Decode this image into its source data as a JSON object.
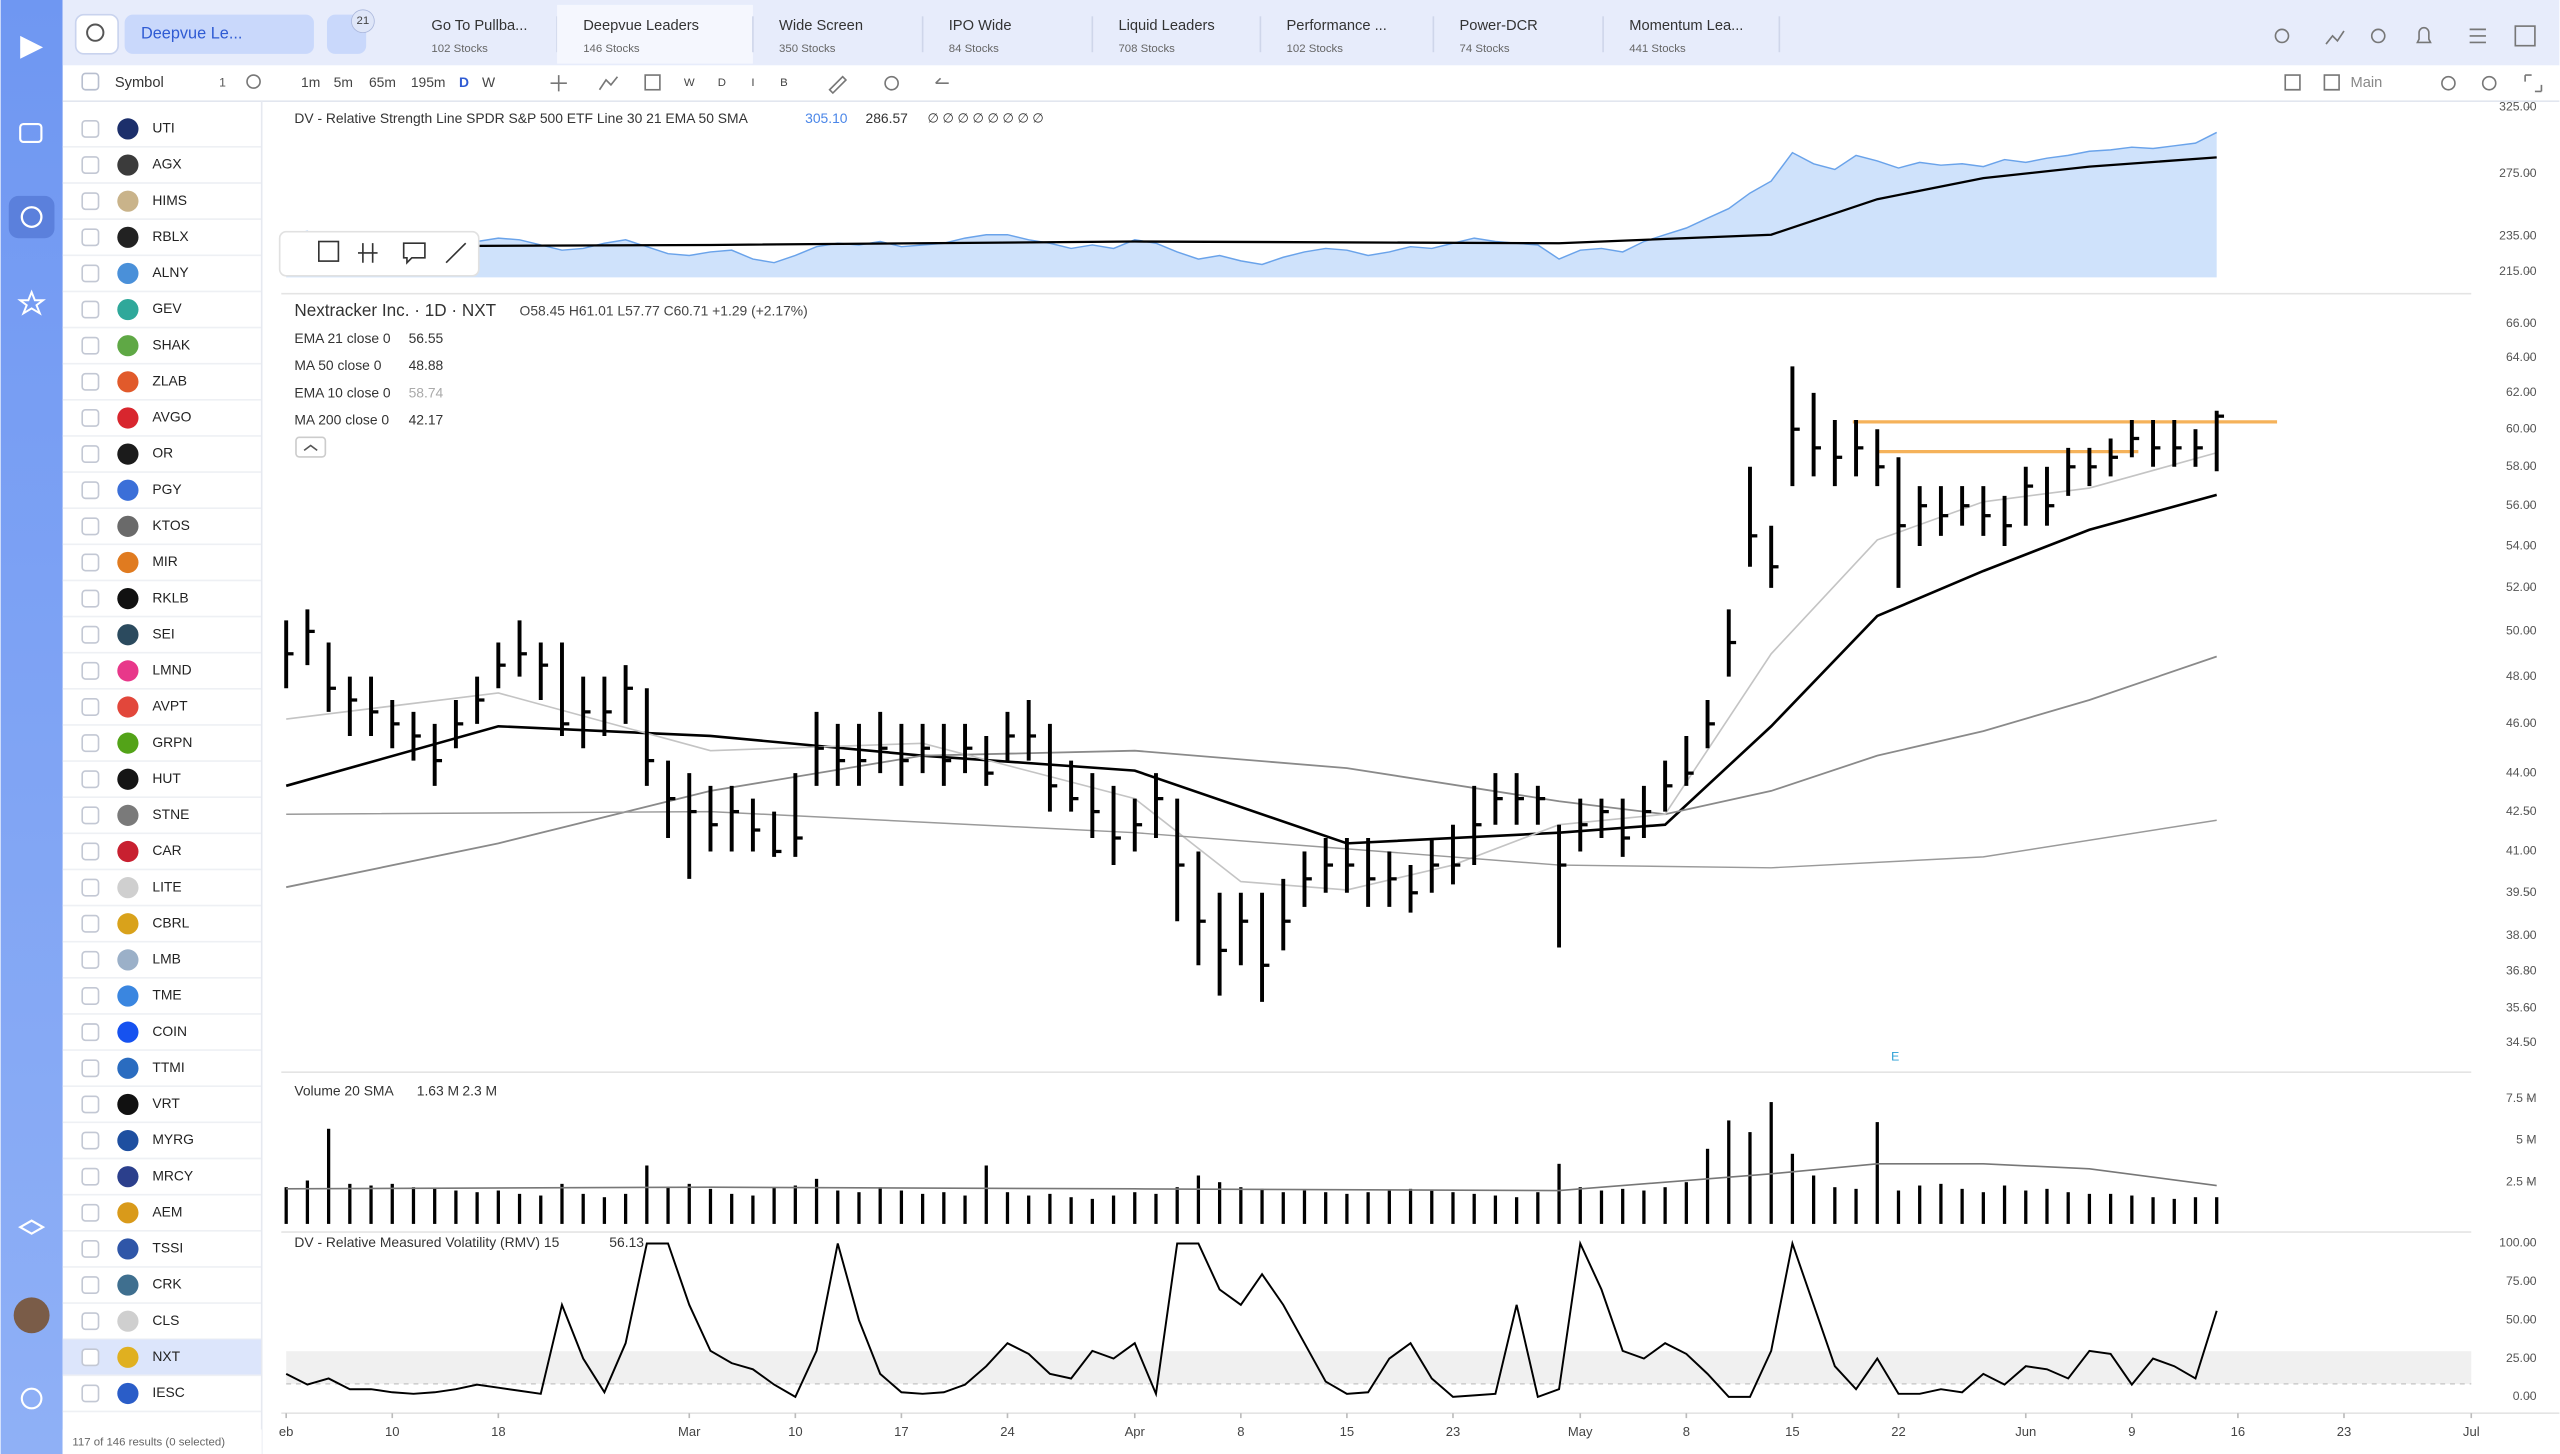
{
  "header": {
    "search_dropdown": "Deepvue Le...",
    "badge": "21",
    "tabs": [
      {
        "title": "Go To Pullba...",
        "subtitle": "102 Stocks"
      },
      {
        "title": "Deepvue Leaders",
        "subtitle": "146 Stocks",
        "active": true
      },
      {
        "title": "Wide Screen",
        "subtitle": "350 Stocks"
      },
      {
        "title": "IPO Wide",
        "subtitle": "84 Stocks"
      },
      {
        "title": "Liquid Leaders",
        "subtitle": "708 Stocks"
      },
      {
        "title": "Performance ...",
        "subtitle": "102 Stocks"
      },
      {
        "title": "Power-DCR",
        "subtitle": "74 Stocks"
      },
      {
        "title": "Momentum Lea...",
        "subtitle": "441 Stocks"
      }
    ]
  },
  "toolbar": {
    "symbol_label": "Symbol",
    "symbol_count": "1",
    "timeframes": [
      "1m",
      "5m",
      "65m",
      "195m",
      "D",
      "W"
    ],
    "active_timeframe": "D",
    "modes": [
      "W",
      "D",
      "I",
      "B"
    ],
    "layout": "Main"
  },
  "watchlist": {
    "items": [
      {
        "symbol": "UTI",
        "color": "#1c2f6b"
      },
      {
        "symbol": "AGX",
        "color": "#3b3b3b"
      },
      {
        "symbol": "HIMS",
        "color": "#c9b38a"
      },
      {
        "symbol": "RBLX",
        "color": "#222222"
      },
      {
        "symbol": "ALNY",
        "color": "#4a90d9"
      },
      {
        "symbol": "GEV",
        "color": "#2fa89a"
      },
      {
        "symbol": "SHAK",
        "color": "#5fa845"
      },
      {
        "symbol": "ZLAB",
        "color": "#e15a2b"
      },
      {
        "symbol": "AVGO",
        "color": "#d8262e"
      },
      {
        "symbol": "OR",
        "color": "#1b1b1b"
      },
      {
        "symbol": "PGY",
        "color": "#3b6fd8"
      },
      {
        "symbol": "KTOS",
        "color": "#6a6a6a"
      },
      {
        "symbol": "MIR",
        "color": "#e07b20"
      },
      {
        "symbol": "RKLB",
        "color": "#111111"
      },
      {
        "symbol": "SEI",
        "color": "#2b4a5e"
      },
      {
        "symbol": "LMND",
        "color": "#e8388a"
      },
      {
        "symbol": "AVPT",
        "color": "#e2473b"
      },
      {
        "symbol": "GRPN",
        "color": "#53a318"
      },
      {
        "symbol": "HUT",
        "color": "#151515"
      },
      {
        "symbol": "STNE",
        "color": "#7a7a7a"
      },
      {
        "symbol": "CAR",
        "color": "#c82030"
      },
      {
        "symbol": "LITE",
        "color": "#cfcfcf"
      },
      {
        "symbol": "CBRL",
        "color": "#d9a21b"
      },
      {
        "symbol": "LMB",
        "color": "#9bb0c8"
      },
      {
        "symbol": "TME",
        "color": "#3a86e0"
      },
      {
        "symbol": "COIN",
        "color": "#1652f0"
      },
      {
        "symbol": "TTMI",
        "color": "#2a6cc0"
      },
      {
        "symbol": "VRT",
        "color": "#111111"
      },
      {
        "symbol": "MYRG",
        "color": "#1e4fa0"
      },
      {
        "symbol": "MRCY",
        "color": "#2b3f8c"
      },
      {
        "symbol": "AEM",
        "color": "#d99a1a"
      },
      {
        "symbol": "TSSI",
        "color": "#2f56a8"
      },
      {
        "symbol": "CRK",
        "color": "#3f6f8f"
      },
      {
        "symbol": "CLS",
        "color": "#cfcfcf"
      },
      {
        "symbol": "NXT",
        "color": "#e0b020",
        "active": true
      },
      {
        "symbol": "IESC",
        "color": "#2a5dc8"
      }
    ],
    "footer": "117 of 146 results (0 selected)"
  },
  "chart_data": [
    {
      "type": "area",
      "title": "DV - Relative Strength Line SPDR S&P 500 ETF Line 30 21 EMA 50 SMA",
      "readouts": [
        "305.10",
        "286.57"
      ],
      "flags": "∅ ∅ ∅ ∅ ∅ ∅ ∅ ∅",
      "log_scale": true,
      "xlim": [
        0,
        103
      ],
      "ylim": [
        212,
        330
      ],
      "yticks": [
        {
          "value": 325,
          "label": "325.00"
        },
        {
          "value": 275,
          "label": "275.00"
        },
        {
          "value": 235,
          "label": "235.00"
        },
        {
          "value": 215,
          "label": "215.00"
        }
      ],
      "series": [
        {
          "color": "#6aa3ea",
          "values": [
            236,
            238,
            232,
            229,
            231,
            228,
            230,
            233,
            231,
            232,
            234,
            233,
            230,
            227,
            228,
            231,
            233,
            229,
            225,
            224,
            226,
            227,
            222,
            220,
            224,
            229,
            231,
            230,
            232,
            229,
            230,
            231,
            234,
            236,
            236,
            233,
            231,
            228,
            230,
            228,
            233,
            231,
            226,
            222,
            224,
            221,
            219,
            223,
            226,
            228,
            227,
            224,
            226,
            229,
            228,
            231,
            234,
            232,
            231,
            230,
            222,
            227,
            228,
            226,
            232,
            236,
            240,
            246,
            252,
            262,
            270,
            290,
            282,
            278,
            288,
            284,
            279,
            283,
            281,
            282,
            280,
            285,
            283,
            286,
            288,
            291,
            292,
            294,
            293,
            295,
            297,
            305.1
          ]
        },
        {
          "color": "#000000",
          "x": [
            0,
            20,
            40,
            60,
            70,
            75,
            80,
            85,
            91
          ],
          "values": [
            229,
            230,
            232,
            231,
            236,
            258,
            272,
            280,
            286.57
          ]
        }
      ]
    },
    {
      "type": "ohlc",
      "title": "Nextracker Inc. · 1D · NXT",
      "ohlc_text": "O58.45  H61.01  L57.77  C60.71  +1.29 (+2.17%)",
      "earnings_marker": "E",
      "log_scale": true,
      "xlim": [
        0,
        103
      ],
      "ylim": [
        33.7,
        67.3
      ],
      "yticks": [
        {
          "value": 66,
          "label": "66.00"
        },
        {
          "value": 64,
          "label": "64.00"
        },
        {
          "value": 62,
          "label": "62.00"
        },
        {
          "value": 60,
          "label": "60.00"
        },
        {
          "value": 58,
          "label": "58.00"
        },
        {
          "value": 56,
          "label": "56.00"
        },
        {
          "value": 54,
          "label": "54.00"
        },
        {
          "value": 52,
          "label": "52.00"
        },
        {
          "value": 50,
          "label": "50.00"
        },
        {
          "value": 48,
          "label": "48.00"
        },
        {
          "value": 46,
          "label": "46.00"
        },
        {
          "value": 44,
          "label": "44.00"
        },
        {
          "value": 42.5,
          "label": "42.50"
        },
        {
          "value": 41,
          "label": "41.00"
        },
        {
          "value": 39.5,
          "label": "39.50"
        },
        {
          "value": 38,
          "label": "38.00"
        },
        {
          "value": 36.8,
          "label": "36.80"
        },
        {
          "value": 35.6,
          "label": "35.60"
        },
        {
          "value": 34.5,
          "label": "34.50"
        }
      ],
      "high": [
        50.5,
        51,
        49.5,
        48,
        48,
        47,
        46.5,
        46,
        47,
        48,
        49.5,
        50.5,
        49.5,
        49.5,
        48,
        48,
        48.5,
        47.5,
        44.5,
        44,
        43.5,
        43.5,
        43,
        42.5,
        44,
        46.5,
        46,
        46,
        46.5,
        46,
        46,
        46,
        46,
        45.5,
        46.5,
        47,
        46,
        44.5,
        44,
        43.5,
        43,
        44,
        43,
        41,
        39.5,
        39.5,
        39.5,
        40,
        41,
        41.5,
        41.5,
        41.5,
        41,
        40.5,
        41.5,
        42,
        43.5,
        44,
        44,
        43.5,
        42,
        43,
        43,
        43,
        43.5,
        44.5,
        45.5,
        47,
        51,
        58,
        55,
        63.5,
        62,
        60.5,
        60.5,
        60,
        58.5,
        57,
        57,
        57,
        57,
        56.5,
        58,
        58,
        59,
        59,
        59.5,
        60.5,
        60.5,
        60.5,
        60,
        61.01
      ],
      "low": [
        47.5,
        48.5,
        46.5,
        45.5,
        45.5,
        45,
        44.5,
        43.5,
        45,
        46,
        47.5,
        48,
        47,
        45.5,
        45,
        45.5,
        46,
        43.5,
        41.5,
        40,
        41,
        41,
        41,
        40.8,
        40.8,
        43.5,
        43.5,
        43.5,
        44,
        43.5,
        44,
        43.5,
        44,
        43.5,
        44.5,
        44.5,
        42.5,
        42.5,
        41.5,
        40.5,
        41,
        41.5,
        38.5,
        37,
        36,
        37,
        35.8,
        37.5,
        39,
        39.5,
        39.5,
        39,
        39,
        38.8,
        39.5,
        39.8,
        40.5,
        42,
        42,
        42,
        37.6,
        41,
        41.5,
        40.8,
        41.5,
        42.5,
        43.5,
        45,
        48,
        53,
        52,
        57,
        57.5,
        57,
        57.5,
        57,
        52,
        54,
        54.5,
        55,
        54.5,
        54,
        55,
        55,
        56.5,
        57,
        57.5,
        58.5,
        58,
        58,
        58,
        57.77
      ],
      "close": [
        49,
        50,
        47.5,
        47,
        46.5,
        46,
        45.5,
        44.5,
        46,
        47,
        48.5,
        49,
        48.5,
        46,
        46.5,
        46.5,
        47.5,
        44.5,
        43,
        42.5,
        42,
        42.5,
        41.8,
        41,
        41.5,
        45,
        44.5,
        44.5,
        45,
        44.5,
        45,
        44.5,
        45,
        44,
        45.5,
        45.5,
        43.5,
        43,
        42.5,
        41.5,
        42,
        43,
        40.5,
        38.5,
        37.5,
        38.5,
        37,
        38.5,
        40,
        40.5,
        40.5,
        40,
        40,
        39.5,
        40.5,
        40.5,
        42,
        43,
        43,
        43,
        40.5,
        42,
        42.5,
        41.5,
        42.5,
        43.5,
        44,
        46,
        49.5,
        54.5,
        53,
        60,
        59,
        58.5,
        59,
        58,
        55,
        56,
        55.5,
        56,
        55.5,
        55,
        57,
        56,
        58,
        58,
        58.5,
        59.5,
        59,
        59,
        59,
        60.71
      ],
      "series": [
        {
          "name": "EMA 21 close 0",
          "value_label": "56.55",
          "color": "#000000",
          "width": 1.6,
          "x": [
            0,
            10,
            20,
            30,
            40,
            50,
            60,
            65,
            70,
            75,
            80,
            85,
            91
          ],
          "values": [
            43.5,
            45.9,
            45.5,
            44.7,
            44.1,
            41.3,
            41.7,
            42,
            45.9,
            50.7,
            52.8,
            54.8,
            56.55
          ]
        },
        {
          "name": "MA 50 close 0",
          "value_label": "48.88",
          "color": "#8a8a8a",
          "width": 1.1,
          "x": [
            0,
            10,
            20,
            30,
            40,
            50,
            60,
            65,
            70,
            75,
            80,
            85,
            91
          ],
          "values": [
            39.7,
            41.3,
            43.3,
            44.7,
            44.9,
            44.2,
            42.9,
            42.4,
            43.3,
            44.7,
            45.7,
            47,
            48.88
          ]
        },
        {
          "name": "EMA 10 close 0",
          "value_label": "58.74",
          "color": "#c4c4c4",
          "width": 1,
          "x": [
            0,
            10,
            20,
            30,
            40,
            45,
            50,
            55,
            60,
            65,
            70,
            75,
            80,
            85,
            91
          ],
          "values": [
            46.2,
            47.3,
            44.9,
            45.2,
            43,
            39.9,
            39.6,
            40.5,
            42,
            42.4,
            49,
            54.3,
            56.2,
            56.9,
            58.74
          ]
        },
        {
          "name": "MA 200 close 0",
          "value_label": "42.17",
          "color": "#9a9a9a",
          "width": 0.9,
          "x": [
            0,
            20,
            40,
            60,
            70,
            80,
            91
          ],
          "values": [
            42.4,
            42.5,
            41.7,
            40.5,
            40.4,
            40.8,
            42.17
          ]
        }
      ],
      "levels": [
        {
          "value": 60.4,
          "color": "#f5b25a"
        },
        {
          "value": 58.8,
          "color": "#f5b25a"
        }
      ]
    },
    {
      "type": "bar",
      "title": "Volume 20 SMA",
      "readouts": [
        "1.63 M",
        "2.3 M"
      ],
      "color": "#000000",
      "xlim": [
        0,
        103
      ],
      "ylim": [
        0,
        8.8
      ],
      "yticks": [
        {
          "value": 7.5,
          "label": "7.5 M"
        },
        {
          "value": 5,
          "label": "5 M"
        },
        {
          "value": 2.5,
          "label": "2.5 M"
        }
      ],
      "values": [
        2.2,
        2.6,
        5.7,
        2.4,
        2.3,
        2.4,
        2.2,
        2.1,
        2.0,
        1.9,
        2.0,
        1.8,
        1.7,
        2.4,
        1.8,
        1.6,
        1.8,
        3.5,
        2.2,
        2.4,
        2.1,
        1.8,
        1.7,
        2.2,
        2.3,
        2.7,
        2.0,
        1.9,
        2.2,
        2.0,
        1.8,
        1.9,
        1.7,
        3.5,
        1.9,
        1.7,
        1.8,
        1.6,
        1.5,
        1.7,
        1.9,
        1.8,
        2.2,
        2.9,
        2.5,
        2.2,
        2.1,
        1.9,
        2.0,
        1.9,
        1.8,
        1.9,
        2.0,
        2.1,
        2.0,
        1.9,
        1.8,
        1.7,
        1.6,
        1.9,
        3.6,
        2.2,
        2.0,
        2.1,
        2.0,
        2.2,
        2.5,
        4.5,
        6.2,
        5.5,
        7.3,
        4.2,
        2.9,
        2.2,
        2.1,
        6.1,
        2.0,
        2.3,
        2.4,
        2.1,
        1.9,
        2.3,
        2.0,
        2.1,
        1.9,
        1.8,
        1.8,
        1.7,
        1.6,
        1.5,
        1.6,
        1.6
      ],
      "sma": {
        "color": "#777777",
        "x": [
          0,
          20,
          40,
          60,
          70,
          75,
          80,
          85,
          91
        ],
        "values": [
          2.1,
          2.2,
          2.1,
          2.0,
          3.0,
          3.6,
          3.6,
          3.3,
          2.3
        ]
      }
    },
    {
      "type": "line",
      "title": "DV - Relative Measured Volatility (RMV) 15",
      "readouts": [
        "56.13"
      ],
      "color": "#000000",
      "xlim": [
        0,
        103
      ],
      "ylim": [
        0,
        100
      ],
      "yticks": [
        {
          "value": 100,
          "label": "100.00"
        },
        {
          "value": 75,
          "label": "75.00"
        },
        {
          "value": 50,
          "label": "50.00"
        },
        {
          "value": 25,
          "label": "25.00"
        },
        {
          "value": 0,
          "label": "0.00"
        }
      ],
      "values": [
        15,
        8,
        12,
        5,
        5,
        3,
        2,
        3,
        5,
        8,
        6,
        4,
        2,
        60,
        25,
        3,
        35,
        100,
        100,
        60,
        30,
        22,
        18,
        8,
        0,
        30,
        100,
        50,
        15,
        3,
        2,
        3,
        8,
        20,
        35,
        28,
        15,
        12,
        30,
        25,
        35,
        2,
        100,
        100,
        70,
        60,
        80,
        60,
        35,
        10,
        2,
        3,
        25,
        35,
        12,
        0,
        1,
        2,
        60,
        0,
        5,
        100,
        70,
        30,
        25,
        35,
        28,
        15,
        0,
        0,
        30,
        100,
        60,
        20,
        5,
        25,
        2,
        2,
        5,
        3,
        15,
        8,
        20,
        18,
        12,
        30,
        28,
        8,
        25,
        20,
        12,
        56.13
      ],
      "xticks": [
        {
          "value": 0,
          "label": "eb"
        },
        {
          "value": 5,
          "label": "10"
        },
        {
          "value": 10,
          "label": "18"
        },
        {
          "value": 19,
          "label": "Mar"
        },
        {
          "value": 24,
          "label": "10"
        },
        {
          "value": 29,
          "label": "17"
        },
        {
          "value": 34,
          "label": "24"
        },
        {
          "value": 40,
          "label": "Apr"
        },
        {
          "value": 45,
          "label": "8"
        },
        {
          "value": 50,
          "label": "15"
        },
        {
          "value": 55,
          "label": "23"
        },
        {
          "value": 61,
          "label": "May"
        },
        {
          "value": 66,
          "label": "8"
        },
        {
          "value": 71,
          "label": "15"
        },
        {
          "value": 76,
          "label": "22"
        },
        {
          "value": 82,
          "label": "Jun"
        },
        {
          "value": 87,
          "label": "9"
        },
        {
          "value": 92,
          "label": "16"
        },
        {
          "value": 97,
          "label": "23"
        },
        {
          "value": 103,
          "label": "Jul"
        }
      ]
    }
  ]
}
